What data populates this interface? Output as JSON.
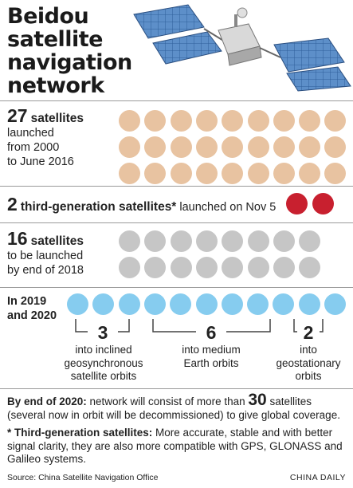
{
  "title": {
    "lines": [
      "Beidou",
      "satellite",
      "navigation",
      "network"
    ]
  },
  "colors": {
    "launched": "#e8c3a1",
    "third_gen": "#c8202f",
    "planned": "#c6c6c6",
    "future": "#86ccef"
  },
  "sections": {
    "launched": {
      "number": "27",
      "label": "satellites",
      "lines": [
        "launched",
        "from 2000",
        "to June 2016"
      ],
      "count": 27
    },
    "third_gen": {
      "number": "2",
      "label": "third-generation satellites*",
      "suffix": " launched on Nov 5",
      "count": 2
    },
    "planned": {
      "number": "16",
      "label": "satellites",
      "lines": [
        "to be launched",
        "by end of 2018"
      ],
      "count": 16
    },
    "future": {
      "lines": [
        "In 2019",
        "and 2020"
      ],
      "count": 11
    }
  },
  "orbits": [
    {
      "number": "3",
      "lines": [
        "into inclined",
        "geosynchronous",
        "satellite orbits"
      ]
    },
    {
      "number": "6",
      "lines": [
        "into medium",
        "Earth orbits"
      ]
    },
    {
      "number": "2",
      "lines": [
        "into",
        "geostationary",
        "orbits"
      ]
    }
  ],
  "notes": {
    "end_label": "By end of 2020:",
    "end_pre": " network will consist of more than ",
    "end_number": "30",
    "end_post": " satellites (several now in orbit will be decommissioned) to give global coverage.",
    "third_label": "* Third-generation satellites:",
    "third_text": " More accurate, stable and with better signal clarity, they are also more compatible with GPS, GLONASS and Galileo systems."
  },
  "source": "Source: China Satellite Navigation Office",
  "credit": "CHINA DAILY"
}
